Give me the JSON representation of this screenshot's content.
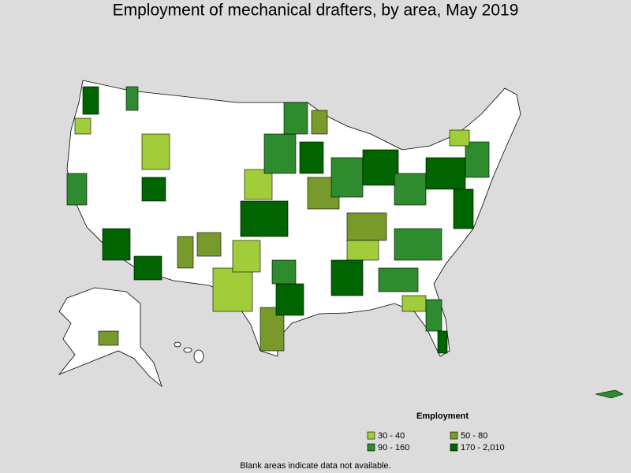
{
  "title": "Employment of mechanical drafters, by area, May 2019",
  "legend": {
    "title": "Employment",
    "items": [
      {
        "label": "30 - 40",
        "color": "#a2cd3a"
      },
      {
        "label": "50 - 80",
        "color": "#789a2b"
      },
      {
        "label": "90 - 160",
        "color": "#2e8b2e"
      },
      {
        "label": "170 - 2,010",
        "color": "#006400"
      }
    ]
  },
  "note": "Blank areas indicate data not available."
}
